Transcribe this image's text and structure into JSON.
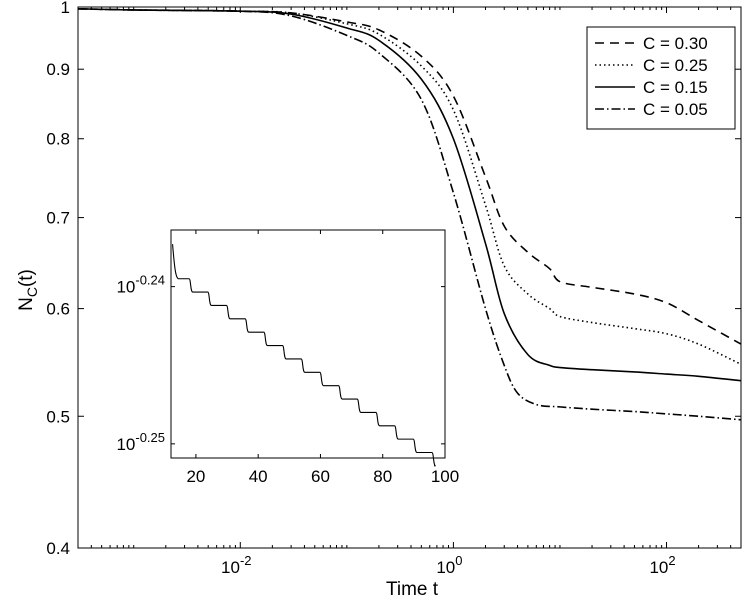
{
  "chart_data": [
    {
      "type": "line",
      "xscale": "log",
      "yscale": "log",
      "xlim": [
        0.0003,
        500
      ],
      "ylim": [
        0.4,
        1.0
      ],
      "xlabel": "Time t",
      "ylabel": "N",
      "ylabel_sub": "C",
      "ylabel_suffix": "(t)",
      "xticks": [
        {
          "value": 0.01,
          "base": "10",
          "exp": "-2"
        },
        {
          "value": 1,
          "base": "10",
          "exp": "0"
        },
        {
          "value": 100,
          "base": "10",
          "exp": "2"
        }
      ],
      "yticks": [
        {
          "value": 0.4,
          "label": "0.4"
        },
        {
          "value": 0.5,
          "label": "0.5"
        },
        {
          "value": 0.6,
          "label": "0.6"
        },
        {
          "value": 0.7,
          "label": "0.7"
        },
        {
          "value": 0.8,
          "label": "0.8"
        },
        {
          "value": 0.9,
          "label": "0.9"
        },
        {
          "value": 1.0,
          "label": "1"
        }
      ],
      "legend_position": "top-right",
      "series": [
        {
          "name": "C = 0.30",
          "dash": "dashed",
          "x": [
            0.0003,
            0.001,
            0.01,
            0.03,
            0.1,
            0.2,
            0.5,
            1,
            2,
            3,
            5,
            8,
            10,
            20,
            50,
            100,
            200,
            500
          ],
          "y": [
            0.997,
            0.995,
            0.993,
            0.99,
            0.975,
            0.962,
            0.92,
            0.86,
            0.75,
            0.69,
            0.66,
            0.642,
            0.628,
            0.622,
            0.615,
            0.606,
            0.588,
            0.565
          ]
        },
        {
          "name": "C = 0.25",
          "dash": "dotted",
          "x": [
            0.0003,
            0.001,
            0.01,
            0.03,
            0.1,
            0.2,
            0.5,
            1,
            2,
            3,
            5,
            8,
            10,
            20,
            50,
            100,
            200,
            500
          ],
          "y": [
            0.997,
            0.995,
            0.993,
            0.99,
            0.972,
            0.955,
            0.905,
            0.84,
            0.715,
            0.645,
            0.615,
            0.6,
            0.592,
            0.586,
            0.58,
            0.575,
            0.565,
            0.546
          ]
        },
        {
          "name": "C = 0.15",
          "dash": "solid",
          "x": [
            0.0003,
            0.001,
            0.01,
            0.03,
            0.1,
            0.2,
            0.5,
            1,
            2,
            3,
            5,
            8,
            10,
            20,
            50,
            100,
            200,
            500
          ],
          "y": [
            0.997,
            0.995,
            0.993,
            0.988,
            0.965,
            0.945,
            0.885,
            0.8,
            0.67,
            0.595,
            0.555,
            0.545,
            0.543,
            0.541,
            0.539,
            0.537,
            0.535,
            0.531
          ]
        },
        {
          "name": "C = 0.05",
          "dash": "dashdot",
          "x": [
            0.0003,
            0.001,
            0.01,
            0.03,
            0.1,
            0.2,
            0.5,
            1,
            2,
            3,
            4,
            6,
            10,
            20,
            50,
            100,
            200,
            500
          ],
          "y": [
            0.997,
            0.995,
            0.993,
            0.985,
            0.953,
            0.925,
            0.855,
            0.73,
            0.6,
            0.545,
            0.52,
            0.51,
            0.508,
            0.506,
            0.504,
            0.502,
            0.5,
            0.497
          ]
        }
      ]
    },
    {
      "type": "line",
      "inset": true,
      "xlim": [
        12,
        100
      ],
      "yscale": "log",
      "ylim_log10": [
        -0.2509,
        -0.2364
      ],
      "xticks": [
        20,
        40,
        60,
        80,
        100
      ],
      "yticks": [
        {
          "log10": -0.24,
          "base": "10",
          "exp": "-0.24"
        },
        {
          "log10": -0.25,
          "base": "10",
          "exp": "-0.25"
        }
      ],
      "series": [
        {
          "name": "",
          "dash": "solid",
          "step_width": 6,
          "log10_start": -0.237,
          "log10_first_step": -0.2395,
          "log10_step": -0.00085,
          "steps_start_x": 14.5,
          "x_end": 96.5
        }
      ]
    }
  ]
}
